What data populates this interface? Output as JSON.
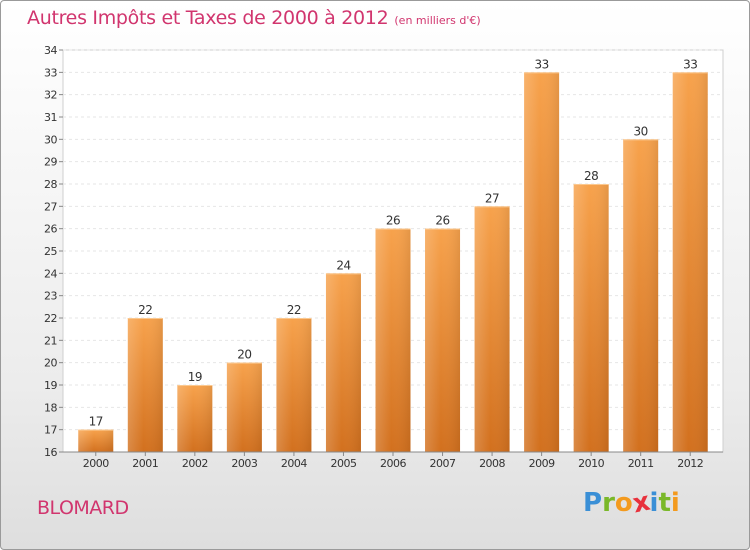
{
  "title": "Autres Impôts et Taxes de 2000 à 2012",
  "subtitle": "(en milliers d'€)",
  "commune": "BLOMARD",
  "logo": {
    "letters": [
      "P",
      "r",
      "o",
      "x",
      "i",
      "t",
      "i"
    ],
    "colors": [
      "#3a8fd6",
      "#7ab829",
      "#f39a1e",
      "#e8313c",
      "#3a8fd6",
      "#7ab829",
      "#f39a1e"
    ]
  },
  "chart_data": {
    "type": "bar",
    "categories": [
      "2000",
      "2001",
      "2002",
      "2003",
      "2004",
      "2005",
      "2006",
      "2007",
      "2008",
      "2009",
      "2010",
      "2011",
      "2012"
    ],
    "values": [
      17,
      22,
      19,
      20,
      22,
      24,
      26,
      26,
      27,
      33,
      28,
      30,
      33
    ],
    "data_labels": [
      "17",
      "22",
      "19",
      "20",
      "22",
      "24",
      "26",
      "26",
      "27",
      "33",
      "28",
      "30",
      "33"
    ],
    "y_ticks": [
      "16",
      "17",
      "18",
      "19",
      "20",
      "21",
      "22",
      "23",
      "24",
      "25",
      "26",
      "27",
      "28",
      "29",
      "30",
      "31",
      "32",
      "33",
      "34"
    ],
    "ylim": [
      16,
      34
    ],
    "grid": true,
    "bar_color": "#f29a3c",
    "bar_color_dark": "#d2701e"
  }
}
